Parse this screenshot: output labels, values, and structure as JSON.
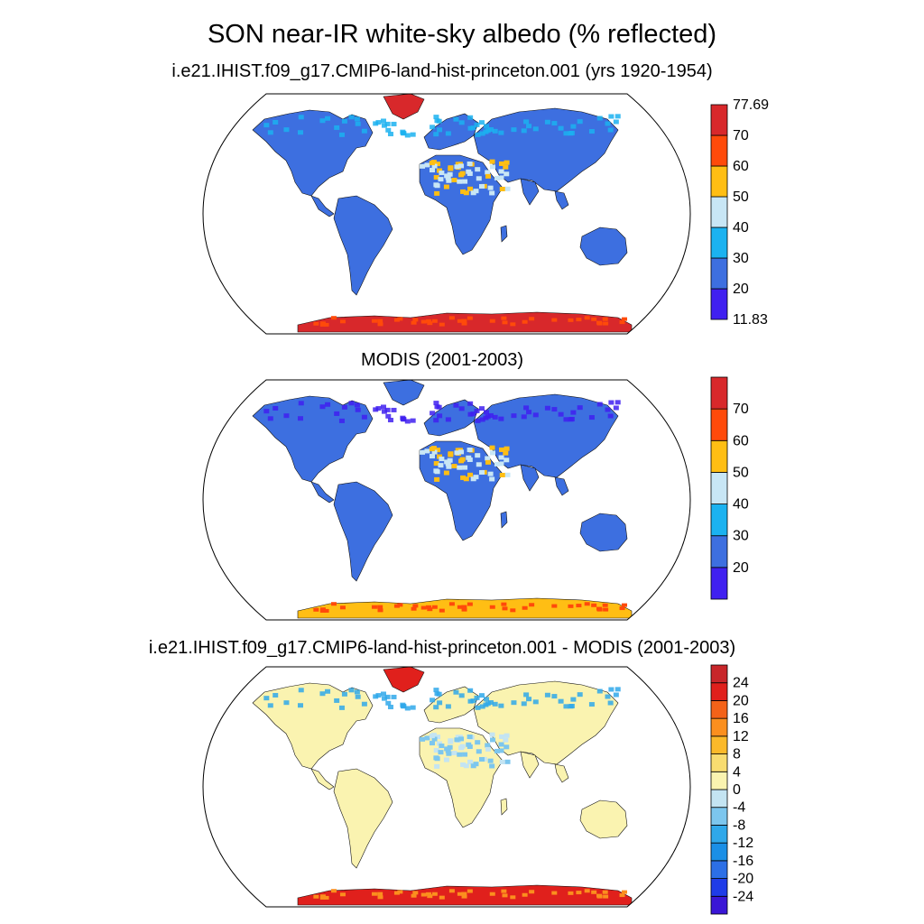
{
  "figure": {
    "title": "SON near-IR white-sky albedo (% reflected)"
  },
  "panels": [
    {
      "title": "i.e21.IHIST.f09_g17.CMIP6-land-hist-princeton.001 (yrs 1920-1954)",
      "colorbar": {
        "colors": [
          "#4020f0",
          "#3d6fe0",
          "#1bb2f0",
          "#c8e6f5",
          "#ffbe14",
          "#ff4a0a",
          "#d8282b"
        ],
        "labels": [
          "11.83",
          "20",
          "30",
          "40",
          "50",
          "60",
          "70",
          "77.69"
        ]
      }
    },
    {
      "title": "MODIS (2001-2003)",
      "colorbar": {
        "colors": [
          "#4020f0",
          "#3d6fe0",
          "#1bb2f0",
          "#c8e6f5",
          "#ffbe14",
          "#ff4a0a",
          "#d8282b"
        ],
        "labels": [
          "",
          "20",
          "30",
          "40",
          "50",
          "60",
          "70",
          ""
        ]
      }
    },
    {
      "title": "i.e21.IHIST.f09_g17.CMIP6-land-hist-princeton.001 - MODIS (2001-2003)",
      "colorbar": {
        "colors": [
          "#3a16d6",
          "#1f3ce8",
          "#2c6fe6",
          "#1a8fe6",
          "#2fa8ea",
          "#7cc6ee",
          "#c4e4f2",
          "#faf3b0",
          "#f8dc70",
          "#fbb92a",
          "#fb8f1e",
          "#f46218",
          "#e0201c",
          "#c8262a"
        ],
        "labels": [
          "",
          "-24",
          "-20",
          "-16",
          "-12",
          "-8",
          "-4",
          "0",
          "4",
          "8",
          "12",
          "16",
          "20",
          "24",
          ""
        ]
      }
    }
  ]
}
